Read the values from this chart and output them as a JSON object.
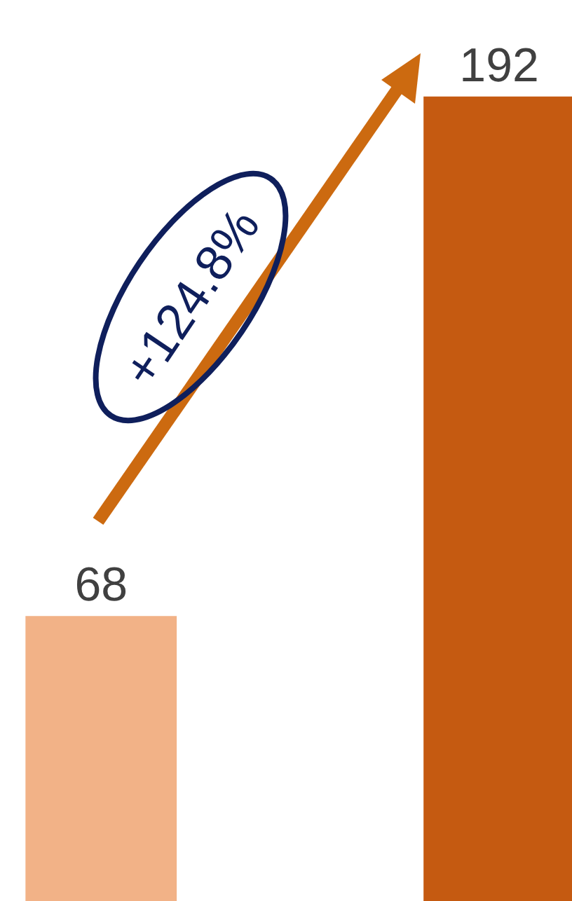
{
  "chart_data": {
    "type": "bar",
    "categories": [
      null,
      null
    ],
    "values": [
      68,
      192
    ],
    "colors": [
      "#f2b287",
      "#c55a11"
    ],
    "data_labels": true,
    "annotations": [
      "+124.8%"
    ]
  }
}
